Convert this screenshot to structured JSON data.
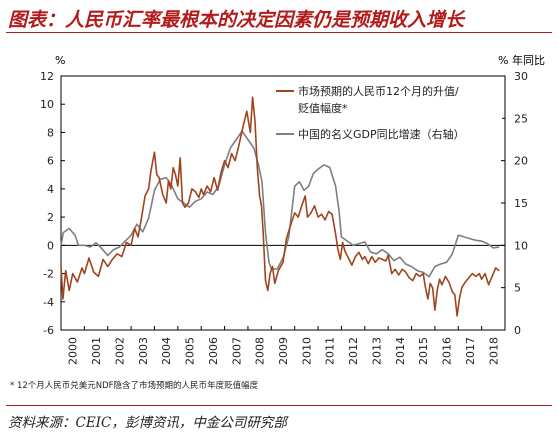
{
  "header": {
    "title": "图表：人民币汇率最根本的决定因素仍是预期收入增长"
  },
  "footnote": "* 12个月人民币兑美元NDF隐含了市场预期的人民币年度贬值幅度",
  "source": "资料来源：CEIC，彭博资讯，中金公司研究部",
  "chart_data": {
    "type": "line",
    "left_axis": {
      "unit": "%",
      "ylim": [
        -6,
        12
      ],
      "ticks": [
        -6,
        -4,
        -2,
        0,
        2,
        4,
        6,
        8,
        10,
        12
      ]
    },
    "right_axis": {
      "unit": "% 年同比",
      "ylim": [
        0,
        30
      ],
      "ticks": [
        0,
        5,
        10,
        15,
        20,
        25,
        30
      ]
    },
    "x_axis": {
      "range": [
        2000,
        2019
      ],
      "tick_labels": [
        "2000",
        "2001",
        "2002",
        "2003",
        "2004",
        "2005",
        "2006",
        "2007",
        "2008",
        "2009",
        "2010",
        "2011",
        "2012",
        "2013",
        "2014",
        "2015",
        "2016",
        "2017",
        "2018"
      ]
    },
    "legend_position": "top-right",
    "grid": false,
    "series": [
      {
        "name": "市场预期的人民币12个月的升值/贬值幅度*",
        "axis": "left",
        "color": "#a0441f",
        "points": [
          [
            2000.0,
            -1.5
          ],
          [
            2000.08,
            -3.8
          ],
          [
            2000.2,
            -1.8
          ],
          [
            2000.35,
            -3.2
          ],
          [
            2000.5,
            -2.0
          ],
          [
            2000.7,
            -2.6
          ],
          [
            2000.9,
            -1.6
          ],
          [
            2001.0,
            -2.0
          ],
          [
            2001.2,
            -0.9
          ],
          [
            2001.4,
            -1.9
          ],
          [
            2001.6,
            -2.2
          ],
          [
            2001.8,
            -1.0
          ],
          [
            2002.0,
            -1.5
          ],
          [
            2002.2,
            -1.0
          ],
          [
            2002.4,
            -0.6
          ],
          [
            2002.6,
            -0.8
          ],
          [
            2002.8,
            0.2
          ],
          [
            2003.0,
            0.0
          ],
          [
            2003.15,
            1.2
          ],
          [
            2003.3,
            0.6
          ],
          [
            2003.45,
            2.0
          ],
          [
            2003.6,
            3.5
          ],
          [
            2003.75,
            4.0
          ],
          [
            2003.85,
            5.3
          ],
          [
            2004.0,
            6.6
          ],
          [
            2004.1,
            5.0
          ],
          [
            2004.2,
            4.8
          ],
          [
            2004.35,
            3.6
          ],
          [
            2004.5,
            3.0
          ],
          [
            2004.6,
            4.6
          ],
          [
            2004.7,
            4.0
          ],
          [
            2004.8,
            5.5
          ],
          [
            2004.9,
            5.0
          ],
          [
            2005.0,
            4.2
          ],
          [
            2005.1,
            6.2
          ],
          [
            2005.2,
            3.0
          ],
          [
            2005.3,
            2.7
          ],
          [
            2005.45,
            3.0
          ],
          [
            2005.6,
            4.0
          ],
          [
            2005.75,
            3.8
          ],
          [
            2005.9,
            3.4
          ],
          [
            2006.0,
            4.0
          ],
          [
            2006.1,
            3.6
          ],
          [
            2006.25,
            4.2
          ],
          [
            2006.4,
            3.8
          ],
          [
            2006.55,
            4.8
          ],
          [
            2006.7,
            3.9
          ],
          [
            2006.85,
            5.2
          ],
          [
            2007.0,
            6.0
          ],
          [
            2007.15,
            5.5
          ],
          [
            2007.3,
            6.5
          ],
          [
            2007.45,
            6.0
          ],
          [
            2007.6,
            7.0
          ],
          [
            2007.8,
            8.5
          ],
          [
            2007.95,
            9.5
          ],
          [
            2008.1,
            8.0
          ],
          [
            2008.2,
            10.5
          ],
          [
            2008.3,
            8.8
          ],
          [
            2008.4,
            5.5
          ],
          [
            2008.5,
            3.5
          ],
          [
            2008.58,
            2.8
          ],
          [
            2008.65,
            1.0
          ],
          [
            2008.75,
            -2.5
          ],
          [
            2008.85,
            -3.2
          ],
          [
            2008.95,
            -2.0
          ],
          [
            2009.05,
            -1.5
          ],
          [
            2009.15,
            -2.7
          ],
          [
            2009.3,
            -1.8
          ],
          [
            2009.5,
            -1.2
          ],
          [
            2009.65,
            0.5
          ],
          [
            2009.8,
            1.3
          ],
          [
            2010.0,
            2.3
          ],
          [
            2010.15,
            2.0
          ],
          [
            2010.3,
            2.8
          ],
          [
            2010.45,
            3.5
          ],
          [
            2010.55,
            2.0
          ],
          [
            2010.7,
            2.3
          ],
          [
            2010.85,
            2.8
          ],
          [
            2011.0,
            2.0
          ],
          [
            2011.15,
            2.2
          ],
          [
            2011.3,
            1.8
          ],
          [
            2011.45,
            2.4
          ],
          [
            2011.6,
            2.2
          ],
          [
            2011.75,
            0.8
          ],
          [
            2011.85,
            -0.3
          ],
          [
            2011.95,
            -1.0
          ],
          [
            2012.05,
            0.2
          ],
          [
            2012.15,
            -0.4
          ],
          [
            2012.3,
            -0.9
          ],
          [
            2012.45,
            -1.4
          ],
          [
            2012.6,
            -0.8
          ],
          [
            2012.75,
            -0.5
          ],
          [
            2012.9,
            -1.0
          ],
          [
            2013.0,
            -0.8
          ],
          [
            2013.15,
            -1.3
          ],
          [
            2013.3,
            -0.8
          ],
          [
            2013.45,
            -1.2
          ],
          [
            2013.6,
            -0.9
          ],
          [
            2013.75,
            -1.0
          ],
          [
            2013.9,
            -1.1
          ],
          [
            2014.0,
            -0.7
          ],
          [
            2014.15,
            -2.0
          ],
          [
            2014.3,
            -1.7
          ],
          [
            2014.45,
            -2.1
          ],
          [
            2014.6,
            -1.7
          ],
          [
            2014.75,
            -1.9
          ],
          [
            2014.9,
            -2.3
          ],
          [
            2015.05,
            -2.5
          ],
          [
            2015.2,
            -2.0
          ],
          [
            2015.35,
            -2.2
          ],
          [
            2015.5,
            -2.0
          ],
          [
            2015.6,
            -3.0
          ],
          [
            2015.7,
            -3.8
          ],
          [
            2015.8,
            -2.7
          ],
          [
            2015.9,
            -3.0
          ],
          [
            2016.0,
            -4.6
          ],
          [
            2016.1,
            -3.2
          ],
          [
            2016.2,
            -2.4
          ],
          [
            2016.3,
            -2.8
          ],
          [
            2016.45,
            -2.2
          ],
          [
            2016.6,
            -2.6
          ],
          [
            2016.75,
            -3.3
          ],
          [
            2016.85,
            -3.5
          ],
          [
            2016.95,
            -5.0
          ],
          [
            2017.05,
            -3.8
          ],
          [
            2017.15,
            -3.0
          ],
          [
            2017.3,
            -2.6
          ],
          [
            2017.45,
            -2.3
          ],
          [
            2017.6,
            -2.0
          ],
          [
            2017.75,
            -2.2
          ],
          [
            2017.9,
            -2.0
          ],
          [
            2018.0,
            -2.4
          ],
          [
            2018.15,
            -2.0
          ],
          [
            2018.3,
            -2.8
          ],
          [
            2018.45,
            -2.2
          ],
          [
            2018.6,
            -1.6
          ],
          [
            2018.75,
            -1.8
          ]
        ]
      },
      {
        "name": "中国的名义GDP同比增速（右轴）",
        "axis": "right",
        "color": "#7f7f7f",
        "points": [
          [
            2000.0,
            10.0
          ],
          [
            2000.1,
            11.5
          ],
          [
            2000.35,
            12.0
          ],
          [
            2000.6,
            11.2
          ],
          [
            2000.75,
            10.0
          ],
          [
            2001.0,
            10.0
          ],
          [
            2001.25,
            9.8
          ],
          [
            2001.5,
            10.3
          ],
          [
            2001.75,
            9.6
          ],
          [
            2002.0,
            8.8
          ],
          [
            2002.25,
            9.5
          ],
          [
            2002.5,
            9.8
          ],
          [
            2002.75,
            10.5
          ],
          [
            2003.0,
            11.2
          ],
          [
            2003.25,
            12.5
          ],
          [
            2003.5,
            11.6
          ],
          [
            2003.75,
            13.2
          ],
          [
            2004.0,
            16.5
          ],
          [
            2004.25,
            17.8
          ],
          [
            2004.5,
            18.0
          ],
          [
            2004.75,
            17.0
          ],
          [
            2005.0,
            15.5
          ],
          [
            2005.25,
            15.0
          ],
          [
            2005.5,
            14.5
          ],
          [
            2005.75,
            15.2
          ],
          [
            2006.0,
            15.5
          ],
          [
            2006.25,
            16.3
          ],
          [
            2006.5,
            16.0
          ],
          [
            2006.75,
            17.0
          ],
          [
            2007.0,
            19.5
          ],
          [
            2007.25,
            21.5
          ],
          [
            2007.5,
            22.5
          ],
          [
            2007.75,
            23.5
          ],
          [
            2008.0,
            22.5
          ],
          [
            2008.25,
            21.5
          ],
          [
            2008.45,
            19.5
          ],
          [
            2008.6,
            17.5
          ],
          [
            2008.75,
            11.5
          ],
          [
            2008.9,
            8.0
          ],
          [
            2009.0,
            7.2
          ],
          [
            2009.25,
            7.2
          ],
          [
            2009.5,
            8.5
          ],
          [
            2009.75,
            11.0
          ],
          [
            2010.0,
            17.0
          ],
          [
            2010.2,
            17.5
          ],
          [
            2010.4,
            16.5
          ],
          [
            2010.6,
            17.0
          ],
          [
            2010.8,
            18.5
          ],
          [
            2011.0,
            19.0
          ],
          [
            2011.25,
            19.5
          ],
          [
            2011.5,
            19.2
          ],
          [
            2011.75,
            17.0
          ],
          [
            2011.9,
            14.0
          ],
          [
            2012.0,
            11.0
          ],
          [
            2012.25,
            10.5
          ],
          [
            2012.5,
            10.0
          ],
          [
            2012.75,
            10.2
          ],
          [
            2013.0,
            10.4
          ],
          [
            2013.25,
            9.2
          ],
          [
            2013.5,
            9.0
          ],
          [
            2013.75,
            9.5
          ],
          [
            2014.0,
            9.0
          ],
          [
            2014.25,
            8.2
          ],
          [
            2014.5,
            8.6
          ],
          [
            2014.75,
            7.8
          ],
          [
            2015.0,
            7.5
          ],
          [
            2015.25,
            7.0
          ],
          [
            2015.5,
            6.8
          ],
          [
            2015.75,
            6.3
          ],
          [
            2016.0,
            7.5
          ],
          [
            2016.25,
            7.8
          ],
          [
            2016.5,
            8.0
          ],
          [
            2016.75,
            9.0
          ],
          [
            2017.0,
            11.2
          ],
          [
            2017.25,
            11.0
          ],
          [
            2017.5,
            10.8
          ],
          [
            2017.75,
            10.6
          ],
          [
            2018.0,
            10.5
          ],
          [
            2018.25,
            10.2
          ],
          [
            2018.5,
            9.7
          ],
          [
            2018.75,
            9.8
          ]
        ]
      }
    ]
  }
}
